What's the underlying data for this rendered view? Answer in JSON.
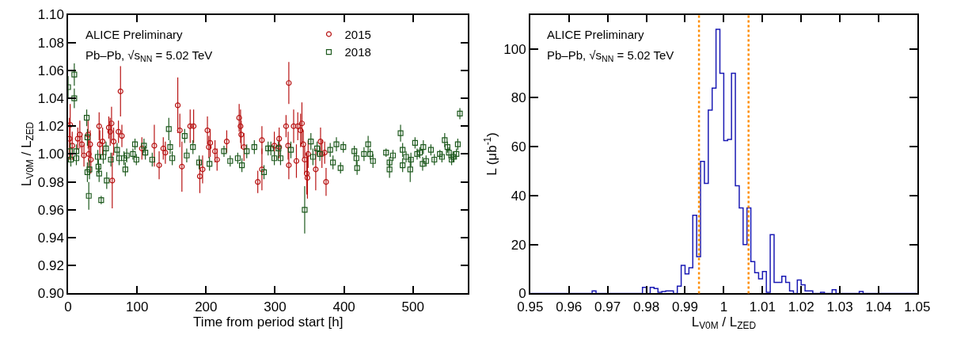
{
  "chart_data": [
    {
      "type": "scatter",
      "xlabel": "Time from period start [h]",
      "ylabel": "L$_{V0M}$ / L$_{ZED}$",
      "annotations": [
        "ALICE Preliminary",
        "Pb–Pb, √s$_{NN}$ = 5.02 TeV"
      ],
      "xlim": [
        0,
        580
      ],
      "xticks": [
        0,
        100,
        200,
        300,
        400,
        500
      ],
      "ylim": [
        0.9,
        1.1
      ],
      "yticks": [
        {
          "value": 0.9,
          "label": "0.90"
        },
        0.92,
        0.94,
        0.96,
        0.98,
        {
          "value": 1.0,
          "label": "1.00"
        },
        1.02,
        1.04,
        1.06,
        1.08,
        {
          "value": 1.1,
          "label": "1.10"
        }
      ],
      "legend": "top right",
      "series": [
        {
          "name": "2015",
          "color": "#b81414",
          "marker": "circle",
          "x": [
            2,
            3,
            6,
            14,
            17,
            20,
            23,
            29,
            30,
            32,
            33,
            45,
            46,
            50,
            59,
            61,
            63,
            64,
            66,
            73,
            76,
            78,
            107,
            125,
            132,
            138,
            141,
            159,
            162,
            165,
            177,
            182,
            191,
            195,
            202,
            204,
            206,
            213,
            216,
            230,
            248,
            250,
            251,
            255,
            275,
            281,
            281,
            299,
            306,
            306,
            316,
            319,
            320,
            320,
            327,
            331,
            333,
            337,
            339,
            341,
            343,
            346,
            347,
            348,
            359,
            366,
            368,
            372,
            374
          ],
          "values": [
            1.011,
            1.021,
            1.006,
            1.011,
            1.014,
            1.007,
            0.999,
            1.014,
            1.0,
            1.007,
            0.996,
            1.02,
            1.007,
            1.009,
            1.019,
            1.016,
            1.022,
            0.981,
            1.009,
            1.016,
            1.045,
            1.013,
            1.004,
            1.006,
            0.992,
            1.004,
            1.001,
            1.035,
            1.017,
            0.991,
            1.02,
            1.02,
            0.984,
            0.989,
            1.017,
            1.005,
            1.008,
            1.002,
            0.996,
            1.009,
            1.026,
            1.02,
            1.014,
            1.005,
            0.98,
            0.989,
            1.01,
            1.006,
            1.011,
            1.005,
            1.02,
            1.006,
            1.051,
            0.992,
            1.02,
            0.995,
            1.02,
            1.017,
            1.022,
            1.007,
            0.996,
            0.986,
            0.983,
            1.0,
            0.989,
            1.009,
            1.0,
            1.001,
            0.98
          ],
          "errors": [
            0.015,
            0.015,
            0.01,
            0.008,
            0.01,
            0.008,
            0.008,
            0.01,
            0.01,
            0.01,
            0.01,
            0.01,
            0.01,
            0.01,
            0.008,
            0.01,
            0.012,
            0.02,
            0.01,
            0.008,
            0.018,
            0.008,
            0.008,
            0.015,
            0.01,
            0.008,
            0.008,
            0.02,
            0.012,
            0.018,
            0.012,
            0.012,
            0.012,
            0.01,
            0.01,
            0.008,
            0.01,
            0.008,
            0.008,
            0.008,
            0.01,
            0.012,
            0.01,
            0.01,
            0.008,
            0.015,
            0.01,
            0.01,
            0.008,
            0.008,
            0.008,
            0.01,
            0.015,
            0.01,
            0.012,
            0.012,
            0.01,
            0.012,
            0.015,
            0.01,
            0.01,
            0.015,
            0.015,
            0.01,
            0.015,
            0.01,
            0.01,
            0.008,
            0.01
          ]
        },
        {
          "name": "2018",
          "color": "#1e5a1e",
          "marker": "square",
          "x": [
            0,
            3,
            4,
            9,
            9,
            12,
            12,
            27,
            28,
            28,
            30,
            31,
            43,
            44,
            45,
            48,
            51,
            55,
            56,
            62,
            71,
            74,
            81,
            83,
            85,
            94,
            97,
            99,
            110,
            112,
            122,
            146,
            148,
            151,
            169,
            172,
            181,
            190,
            205,
            226,
            235,
            246,
            252,
            259,
            270,
            284,
            290,
            294,
            299,
            305,
            308,
            323,
            343,
            352,
            355,
            361,
            365,
            380,
            384,
            389,
            395,
            399,
            415,
            418,
            419,
            429,
            435,
            438,
            442,
            461,
            466,
            466,
            471,
            482,
            485,
            490,
            485,
            496,
            497,
            503,
            506,
            510,
            515,
            514,
            519,
            526,
            531,
            539,
            542,
            546,
            550,
            552,
            556,
            558,
            563,
            565,
            568
          ],
          "values": [
            1.048,
            1.002,
            0.996,
            1.057,
            1.04,
            1.002,
            0.997,
            1.026,
            1.012,
            0.987,
            0.97,
            0.989,
            0.998,
            0.991,
            0.986,
            0.967,
            0.998,
            1.004,
            0.981,
            0.996,
            1.003,
            0.997,
            0.997,
            0.989,
            0.999,
            1.0,
            1.007,
            0.996,
            1.006,
            1.001,
            0.996,
            1.018,
            1.005,
            0.997,
            1.013,
            0.999,
            1.005,
            0.994,
            0.993,
            1.002,
            0.995,
            0.997,
            0.992,
            1.002,
            1.005,
            0.987,
            1.004,
            1.004,
            0.997,
            1.004,
            0.997,
            1.003,
            0.96,
            1.009,
            0.998,
            1.004,
            1.0,
            1.003,
            0.994,
            1.007,
            0.99,
            1.005,
            1.002,
            0.997,
            0.99,
            1.0,
            1.007,
            1.0,
            0.995,
            1.001,
            0.994,
            0.989,
            0.999,
            1.015,
            1.003,
            0.998,
            0.992,
            0.989,
            0.996,
            1.008,
            1.0,
            1.001,
            1.005,
            0.993,
            0.995,
            1.003,
            0.996,
            1.0,
            0.998,
            1.01,
            1.005,
            1.001,
            0.996,
            0.998,
            1.0,
            1.007,
            1.029
          ],
          "errors": [
            0.008,
            0.006,
            0.005,
            0.008,
            0.007,
            0.005,
            0.005,
            0.006,
            0.006,
            0.007,
            0.01,
            0.007,
            0.005,
            0.005,
            0.006,
            0.003,
            0.005,
            0.005,
            0.006,
            0.005,
            0.005,
            0.005,
            0.005,
            0.005,
            0.005,
            0.004,
            0.004,
            0.004,
            0.005,
            0.005,
            0.005,
            0.008,
            0.005,
            0.005,
            0.005,
            0.005,
            0.005,
            0.005,
            0.005,
            0.004,
            0.004,
            0.004,
            0.005,
            0.005,
            0.005,
            0.005,
            0.005,
            0.005,
            0.005,
            0.005,
            0.005,
            0.006,
            0.017,
            0.006,
            0.006,
            0.005,
            0.005,
            0.005,
            0.005,
            0.005,
            0.004,
            0.004,
            0.004,
            0.005,
            0.005,
            0.005,
            0.006,
            0.004,
            0.005,
            0.003,
            0.004,
            0.006,
            0.004,
            0.006,
            0.005,
            0.004,
            0.005,
            0.009,
            0.005,
            0.004,
            0.004,
            0.004,
            0.005,
            0.005,
            0.004,
            0.004,
            0.004,
            0.003,
            0.004,
            0.005,
            0.004,
            0.004,
            0.004,
            0.004,
            0.004,
            0.004,
            0.004
          ]
        }
      ]
    },
    {
      "type": "histogram",
      "xlabel": "L$_{V0M}$ / L$_{ZED}$",
      "ylabel": "L (μb$^{-1}$)",
      "annotations": [
        "ALICE Preliminary",
        "Pb–Pb, √s$_{NN}$ = 5.02 TeV"
      ],
      "xlim": [
        0.95,
        1.05
      ],
      "xticks": [
        0.95,
        0.96,
        0.97,
        0.98,
        0.99,
        1,
        1.01,
        1.02,
        1.03,
        1.04,
        1.05
      ],
      "ylim": [
        0,
        114
      ],
      "yticks": [
        0,
        20,
        40,
        60,
        80,
        100
      ],
      "color": "#1a1ab4",
      "bins": [
        0.95,
        0.951,
        0.952,
        0.953,
        0.954,
        0.955,
        0.956,
        0.957,
        0.958,
        0.959,
        0.96,
        0.961,
        0.962,
        0.963,
        0.964,
        0.965,
        0.966,
        0.967,
        0.968,
        0.969,
        0.97,
        0.971,
        0.972,
        0.973,
        0.974,
        0.975,
        0.976,
        0.977,
        0.978,
        0.979,
        0.98,
        0.981,
        0.982,
        0.983,
        0.984,
        0.985,
        0.986,
        0.987,
        0.988,
        0.989,
        0.99,
        0.991,
        0.992,
        0.993,
        0.994,
        0.995,
        0.996,
        0.997,
        0.998,
        0.999,
        1.0,
        1.001,
        1.002,
        1.003,
        1.004,
        1.005,
        1.006,
        1.007,
        1.008,
        1.009,
        1.01,
        1.011,
        1.012,
        1.013,
        1.014,
        1.015,
        1.016,
        1.017,
        1.018,
        1.019,
        1.02,
        1.021,
        1.022,
        1.023,
        1.024,
        1.025,
        1.026,
        1.027,
        1.028,
        1.029,
        1.03,
        1.031,
        1.032,
        1.033,
        1.034,
        1.035,
        1.036,
        1.037,
        1.038,
        1.039,
        1.04,
        1.041,
        1.042,
        1.043,
        1.044,
        1.045,
        1.046,
        1.047,
        1.048,
        1.049,
        1.05
      ],
      "values": [
        0,
        0,
        0,
        0,
        0,
        0,
        0,
        0,
        0,
        0,
        0,
        0,
        0,
        0,
        0,
        0,
        1,
        0,
        0,
        0,
        0,
        0,
        0,
        0,
        0,
        0,
        0,
        0,
        0,
        2.5,
        0,
        2.5,
        2,
        0.5,
        0.8,
        1,
        1,
        0,
        3,
        11.5,
        8,
        10.5,
        32,
        15,
        54,
        45,
        75,
        84,
        108,
        90,
        62.5,
        63,
        90,
        44,
        35,
        20,
        35,
        13,
        8.5,
        6,
        9,
        0.5,
        24,
        4.5,
        4.5,
        7,
        4.5,
        1,
        0,
        5.5,
        3.5,
        1,
        1,
        0,
        0,
        0.5,
        0,
        0,
        1.5,
        0,
        0,
        0,
        0,
        0,
        0,
        0.8,
        0,
        0,
        0,
        0,
        0,
        0,
        0,
        0,
        0,
        0,
        0,
        0,
        0,
        0
      ],
      "ref_lines": [
        {
          "axis": "x",
          "value": 0.9936,
          "color": "#ff8c00",
          "line_style": "dotted"
        },
        {
          "axis": "x",
          "value": 1.0064,
          "color": "#ff8c00",
          "line_style": "dotted"
        }
      ]
    }
  ]
}
